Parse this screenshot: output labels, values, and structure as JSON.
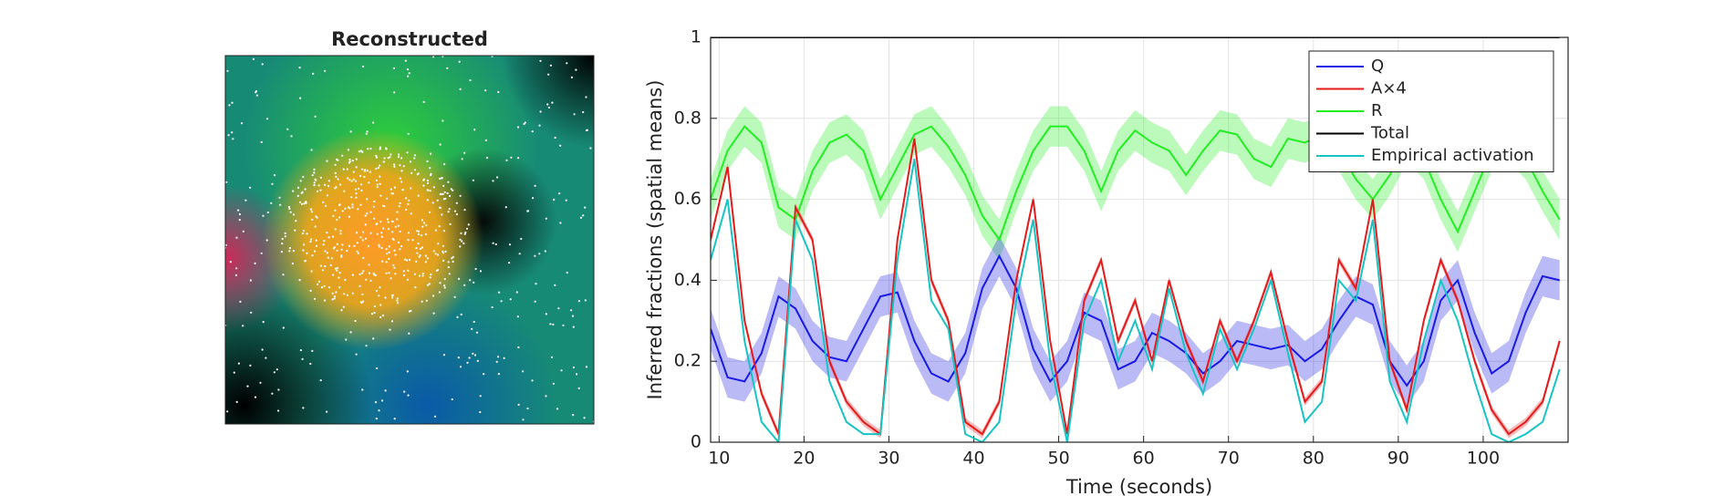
{
  "image_panel": {
    "title": "Reconstructed"
  },
  "chart_data": {
    "type": "line",
    "xlabel": "Time (seconds)",
    "ylabel": "Inferred fractions (spatial means)",
    "x": [
      9,
      11,
      13,
      15,
      17,
      19,
      21,
      23,
      25,
      27,
      29,
      31,
      33,
      35,
      37,
      39,
      41,
      43,
      45,
      47,
      49,
      51,
      53,
      55,
      57,
      59,
      61,
      63,
      65,
      67,
      69,
      71,
      73,
      75,
      77,
      79,
      81,
      83,
      85,
      87,
      89,
      91,
      93,
      95,
      97,
      99,
      101,
      103,
      105,
      107,
      109
    ],
    "xlim": [
      9,
      110
    ],
    "xticks": [
      10,
      20,
      30,
      40,
      50,
      60,
      70,
      80,
      90,
      100
    ],
    "ylim": [
      0,
      1
    ],
    "yticks": [
      0,
      0.2,
      0.4,
      0.6,
      0.8,
      1
    ],
    "grid": true,
    "legend": "upper right",
    "series": [
      {
        "name": "Total",
        "color": "#000000",
        "values": [
          1,
          1,
          1,
          1,
          1,
          1,
          1,
          1,
          1,
          1,
          1,
          1,
          1,
          1,
          1,
          1,
          1,
          1,
          1,
          1,
          1,
          1,
          1,
          1,
          1,
          1,
          1,
          1,
          1,
          1,
          1,
          1,
          1,
          1,
          1,
          1,
          1,
          1,
          1,
          1,
          1,
          1,
          1,
          1,
          1,
          1,
          1,
          1,
          1,
          1,
          1
        ]
      },
      {
        "name": "R",
        "color": "#22ee22",
        "band": 0.05,
        "values": [
          0.6,
          0.72,
          0.78,
          0.74,
          0.58,
          0.55,
          0.67,
          0.74,
          0.76,
          0.72,
          0.6,
          0.68,
          0.76,
          0.78,
          0.73,
          0.66,
          0.56,
          0.5,
          0.62,
          0.72,
          0.78,
          0.78,
          0.72,
          0.62,
          0.72,
          0.77,
          0.74,
          0.72,
          0.66,
          0.72,
          0.77,
          0.76,
          0.7,
          0.68,
          0.75,
          0.74,
          0.76,
          0.72,
          0.65,
          0.6,
          0.66,
          0.74,
          0.7,
          0.6,
          0.52,
          0.62,
          0.72,
          0.74,
          0.7,
          0.62,
          0.55
        ]
      },
      {
        "name": "Q",
        "color": "#1a1ae6",
        "band": 0.05,
        "values": [
          0.28,
          0.16,
          0.15,
          0.22,
          0.36,
          0.33,
          0.25,
          0.21,
          0.2,
          0.28,
          0.36,
          0.37,
          0.25,
          0.17,
          0.15,
          0.22,
          0.38,
          0.46,
          0.38,
          0.23,
          0.15,
          0.2,
          0.32,
          0.3,
          0.18,
          0.2,
          0.27,
          0.25,
          0.22,
          0.17,
          0.2,
          0.25,
          0.24,
          0.23,
          0.24,
          0.2,
          0.23,
          0.3,
          0.36,
          0.34,
          0.2,
          0.14,
          0.2,
          0.35,
          0.4,
          0.27,
          0.17,
          0.2,
          0.32,
          0.41,
          0.4
        ]
      },
      {
        "name": "A×4",
        "color": "#e61a1a",
        "band": 0.01,
        "values": [
          0.5,
          0.68,
          0.3,
          0.12,
          0.02,
          0.58,
          0.5,
          0.2,
          0.1,
          0.05,
          0.02,
          0.5,
          0.75,
          0.4,
          0.3,
          0.05,
          0.02,
          0.1,
          0.4,
          0.6,
          0.25,
          0.02,
          0.35,
          0.45,
          0.25,
          0.35,
          0.2,
          0.4,
          0.25,
          0.15,
          0.3,
          0.2,
          0.3,
          0.42,
          0.25,
          0.1,
          0.15,
          0.45,
          0.38,
          0.6,
          0.2,
          0.08,
          0.3,
          0.45,
          0.35,
          0.2,
          0.08,
          0.02,
          0.05,
          0.1,
          0.25
        ]
      },
      {
        "name": "Empirical activation",
        "color": "#17c4c4",
        "values": [
          0.45,
          0.6,
          0.25,
          0.05,
          0,
          0.55,
          0.45,
          0.15,
          0.05,
          0.02,
          0.02,
          0.45,
          0.7,
          0.35,
          0.28,
          0.02,
          0,
          0.05,
          0.35,
          0.55,
          0.2,
          0,
          0.3,
          0.4,
          0.2,
          0.3,
          0.18,
          0.38,
          0.22,
          0.12,
          0.28,
          0.18,
          0.28,
          0.4,
          0.22,
          0.05,
          0.1,
          0.4,
          0.35,
          0.55,
          0.15,
          0.05,
          0.25,
          0.4,
          0.3,
          0.15,
          0.02,
          0,
          0.02,
          0.05,
          0.18
        ]
      }
    ]
  }
}
